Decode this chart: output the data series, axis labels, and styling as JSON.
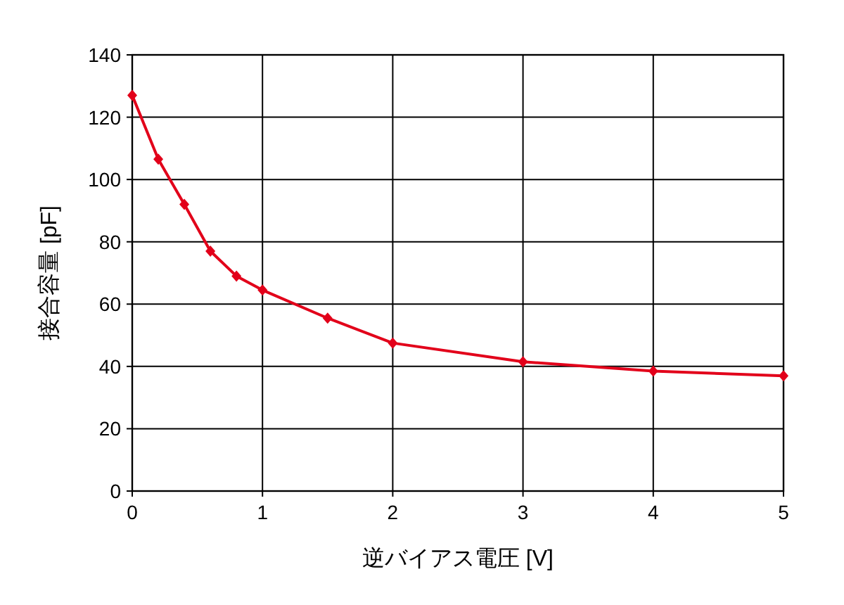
{
  "chart_data": {
    "type": "line",
    "xlabel": "逆バイアス電圧 [V]",
    "ylabel": "接合容量 [pF]",
    "x": [
      0,
      0.2,
      0.4,
      0.6,
      0.8,
      1,
      1.5,
      2,
      3,
      4,
      5
    ],
    "series": [
      {
        "color": "#e2001a",
        "values": [
          127,
          106.5,
          92,
          77,
          69,
          64.5,
          55.5,
          47.5,
          41.5,
          38.5,
          37
        ]
      }
    ],
    "xlim": [
      0,
      5
    ],
    "xticks": [
      0,
      1,
      2,
      3,
      4,
      5
    ],
    "ylim": [
      0,
      140
    ],
    "yticks": [
      0,
      20,
      40,
      60,
      80,
      100,
      120,
      140
    ],
    "grid": true,
    "marker": "diamond",
    "line_style": "solid"
  }
}
